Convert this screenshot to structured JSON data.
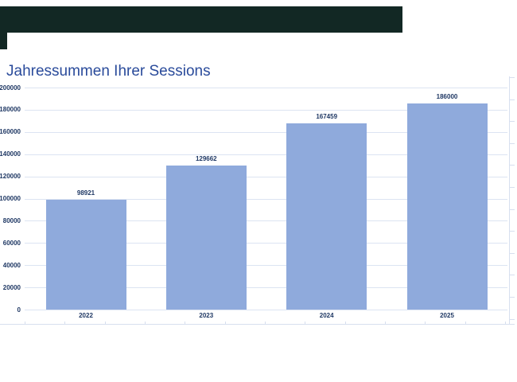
{
  "window": {
    "chrome_color": "#122824"
  },
  "chart_data": {
    "type": "bar",
    "title": "Jahressummen Ihrer Sessions",
    "categories": [
      "2022",
      "2023",
      "2024",
      "2025"
    ],
    "values": [
      98921,
      129662,
      167459,
      186000
    ],
    "data_labels": [
      "98921",
      "129662",
      "167459",
      "186000"
    ],
    "xlabel": "",
    "ylabel": "",
    "ylim": [
      0,
      200000
    ],
    "ytick_step": 20000,
    "ytick_labels": [
      "0",
      "20000",
      "40000",
      "60000",
      "80000",
      "100000",
      "120000",
      "140000",
      "160000",
      "180000",
      "200000"
    ],
    "grid": true,
    "legend_position": "none",
    "colors": {
      "bar_fill": "#8faadc",
      "label_text": "#1f3864",
      "title_text": "#2a4b9b",
      "gridline": "#dce4f2",
      "axis_line": "#d7dfef"
    }
  }
}
